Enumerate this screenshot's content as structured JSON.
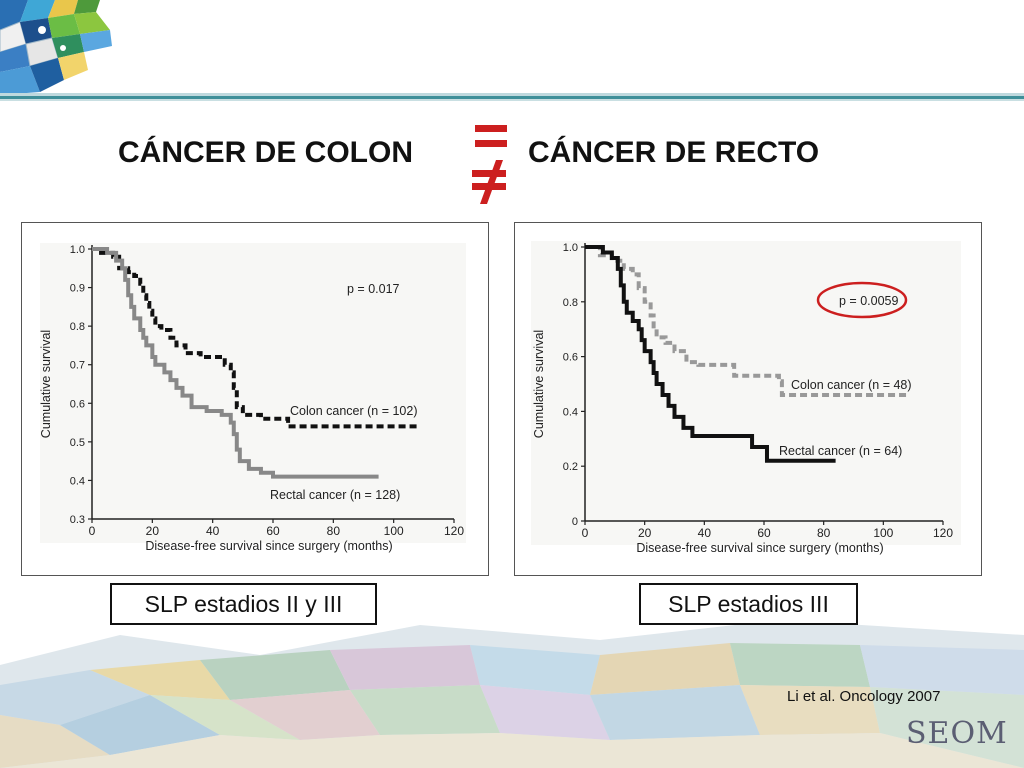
{
  "slide": {
    "title_left": "CÁNCER DE COLON",
    "title_right": "CÁNCER DE RECTO",
    "caption_left": "SLP estadios II y III",
    "caption_right": "SLP estadios III",
    "citation": "Li et al. Oncology 2007",
    "logo_text": "SEOM",
    "symbol_color": "#cc1f1f"
  },
  "chart_data": [
    {
      "type": "line",
      "step": true,
      "xlabel": "Disease-free survival since surgery (months)",
      "ylabel": "Cumulative survival",
      "xlim": [
        0,
        120
      ],
      "ylim": [
        0.3,
        1.0
      ],
      "xticks": [
        0,
        20,
        40,
        60,
        80,
        100,
        120
      ],
      "yticks": [
        0.3,
        0.4,
        0.5,
        0.6,
        0.7,
        0.8,
        0.9,
        1.0
      ],
      "ytick_labels": [
        "0.3",
        "0.4",
        "0.5",
        "0.6",
        "0.7",
        "0.8",
        "0.9",
        "1.0"
      ],
      "grid": false,
      "annotation": "p = 0.017",
      "series": [
        {
          "name": "Colon cancer (n = 102)",
          "color": "#111111",
          "dash": "dashed",
          "points": [
            [
              0,
              1.0
            ],
            [
              3,
              0.99
            ],
            [
              7,
              0.98
            ],
            [
              9,
              0.95
            ],
            [
              12,
              0.94
            ],
            [
              14,
              0.93
            ],
            [
              16,
              0.91
            ],
            [
              17,
              0.88
            ],
            [
              18,
              0.86
            ],
            [
              19,
              0.84
            ],
            [
              20,
              0.82
            ],
            [
              21,
              0.8
            ],
            [
              23,
              0.79
            ],
            [
              26,
              0.77
            ],
            [
              28,
              0.75
            ],
            [
              31,
              0.73
            ],
            [
              36,
              0.72
            ],
            [
              44,
              0.7
            ],
            [
              46,
              0.68
            ],
            [
              47,
              0.64
            ],
            [
              48,
              0.59
            ],
            [
              50,
              0.57
            ],
            [
              56,
              0.56
            ],
            [
              62,
              0.56
            ],
            [
              65,
              0.54
            ],
            [
              108,
              0.54
            ]
          ]
        },
        {
          "name": "Rectal cancer (n = 128)",
          "color": "#888888",
          "dash": "solid",
          "points": [
            [
              0,
              1.0
            ],
            [
              5,
              0.99
            ],
            [
              8,
              0.97
            ],
            [
              10,
              0.95
            ],
            [
              11,
              0.92
            ],
            [
              12,
              0.88
            ],
            [
              13,
              0.85
            ],
            [
              14,
              0.82
            ],
            [
              16,
              0.79
            ],
            [
              17,
              0.77
            ],
            [
              18,
              0.75
            ],
            [
              20,
              0.72
            ],
            [
              21,
              0.7
            ],
            [
              24,
              0.68
            ],
            [
              26,
              0.66
            ],
            [
              28,
              0.64
            ],
            [
              30,
              0.62
            ],
            [
              33,
              0.59
            ],
            [
              38,
              0.58
            ],
            [
              43,
              0.57
            ],
            [
              46,
              0.55
            ],
            [
              47,
              0.52
            ],
            [
              48,
              0.48
            ],
            [
              49,
              0.45
            ],
            [
              52,
              0.43
            ],
            [
              56,
              0.42
            ],
            [
              60,
              0.41
            ],
            [
              95,
              0.41
            ]
          ]
        }
      ]
    },
    {
      "type": "line",
      "step": true,
      "xlabel": "Disease-free survival since surgery (months)",
      "ylabel": "Cumulative survival",
      "xlim": [
        0,
        120
      ],
      "ylim": [
        0,
        1.0
      ],
      "xticks": [
        0,
        20,
        40,
        60,
        80,
        100,
        120
      ],
      "yticks": [
        0,
        0.2,
        0.4,
        0.6,
        0.8,
        1.0
      ],
      "ytick_labels": [
        "0",
        "0.2",
        "0.4",
        "0.6",
        "0.8",
        "1.0"
      ],
      "grid": false,
      "annotation": "p = 0.0059",
      "annotation_circled": true,
      "annotation_circle_color": "#cc1f1f",
      "series": [
        {
          "name": "Colon cancer (n = 48)",
          "color": "#999999",
          "dash": "dashed",
          "points": [
            [
              0,
              1.0
            ],
            [
              5,
              0.97
            ],
            [
              9,
              0.95
            ],
            [
              13,
              0.92
            ],
            [
              16,
              0.9
            ],
            [
              18,
              0.85
            ],
            [
              20,
              0.8
            ],
            [
              22,
              0.75
            ],
            [
              23,
              0.7
            ],
            [
              24,
              0.67
            ],
            [
              27,
              0.65
            ],
            [
              30,
              0.62
            ],
            [
              34,
              0.58
            ],
            [
              38,
              0.57
            ],
            [
              45,
              0.57
            ],
            [
              50,
              0.53
            ],
            [
              56,
              0.53
            ],
            [
              65,
              0.51
            ],
            [
              66,
              0.46
            ],
            [
              108,
              0.46
            ]
          ]
        },
        {
          "name": "Rectal cancer (n = 64)",
          "color": "#111111",
          "dash": "solid",
          "points": [
            [
              0,
              1.0
            ],
            [
              6,
              0.98
            ],
            [
              9,
              0.96
            ],
            [
              11,
              0.92
            ],
            [
              12,
              0.86
            ],
            [
              13,
              0.8
            ],
            [
              14,
              0.76
            ],
            [
              16,
              0.73
            ],
            [
              18,
              0.7
            ],
            [
              19,
              0.66
            ],
            [
              20,
              0.62
            ],
            [
              22,
              0.58
            ],
            [
              23,
              0.54
            ],
            [
              24,
              0.5
            ],
            [
              26,
              0.46
            ],
            [
              28,
              0.42
            ],
            [
              30,
              0.38
            ],
            [
              33,
              0.34
            ],
            [
              36,
              0.31
            ],
            [
              42,
              0.31
            ],
            [
              48,
              0.31
            ],
            [
              56,
              0.27
            ],
            [
              61,
              0.22
            ],
            [
              84,
              0.22
            ]
          ]
        }
      ]
    }
  ]
}
